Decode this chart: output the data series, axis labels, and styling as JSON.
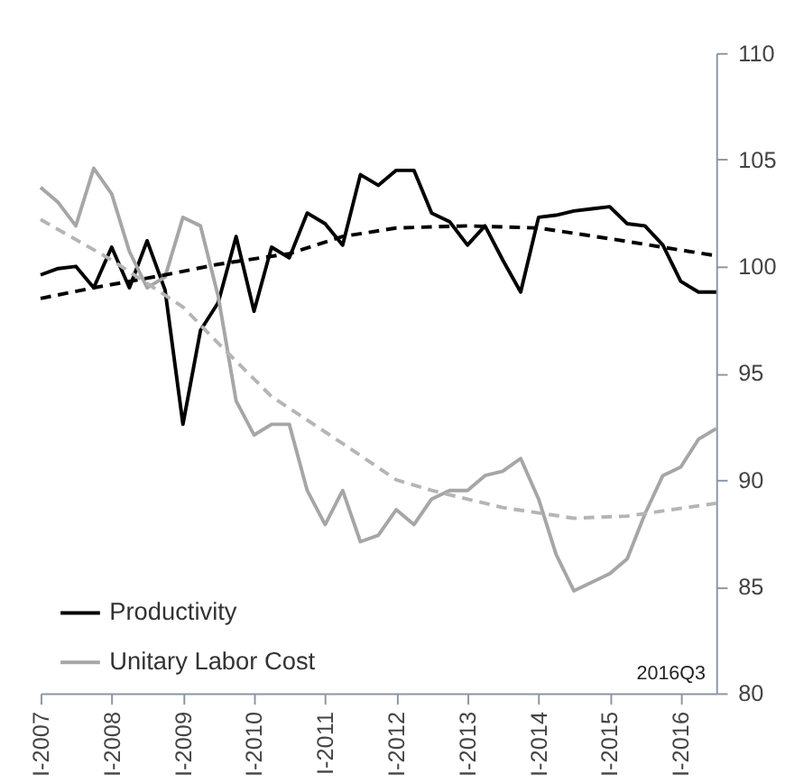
{
  "chart_data": {
    "type": "line",
    "x": [
      "2007-01",
      "2007-04",
      "2007-07",
      "2007-10",
      "2008-01",
      "2008-04",
      "2008-07",
      "2008-10",
      "2009-01",
      "2009-04",
      "2009-07",
      "2009-10",
      "2010-01",
      "2010-04",
      "2010-07",
      "2010-10",
      "2011-01",
      "2011-04",
      "2011-07",
      "2011-10",
      "2012-01",
      "2012-04",
      "2012-07",
      "2012-10",
      "2013-01",
      "2013-04",
      "2013-07",
      "2013-10",
      "2014-01",
      "2014-04",
      "2014-07",
      "2014-10",
      "2015-01",
      "2015-04",
      "2015-07",
      "2015-10",
      "2016-01",
      "2016-04",
      "2016-07"
    ],
    "series": [
      {
        "name": "Productivity",
        "color": "#000000",
        "line_style": "solid",
        "values": [
          99.6,
          99.9,
          100.0,
          99.0,
          100.9,
          99.0,
          101.2,
          98.9,
          92.6,
          97.0,
          98.3,
          101.4,
          97.9,
          100.9,
          100.4,
          102.5,
          102.0,
          101.0,
          104.3,
          103.8,
          104.5,
          104.5,
          102.5,
          102.1,
          101.0,
          101.9,
          100.3,
          98.8,
          102.3,
          102.4,
          102.6,
          102.7,
          102.8,
          102.0,
          101.9,
          101.0,
          99.3,
          98.8,
          98.8
        ]
      },
      {
        "name": "Unitary Labor Cost",
        "color": "#a6a6a6",
        "line_style": "solid",
        "values": [
          103.7,
          103.0,
          101.9,
          104.6,
          103.4,
          100.7,
          99.0,
          99.5,
          102.3,
          101.9,
          98.6,
          93.7,
          92.1,
          92.6,
          92.6,
          89.5,
          87.9,
          89.5,
          87.1,
          87.4,
          88.6,
          87.9,
          89.1,
          89.5,
          89.5,
          90.2,
          90.4,
          91.0,
          89.1,
          86.5,
          84.8,
          85.2,
          85.6,
          86.3,
          88.4,
          90.2,
          90.6,
          91.9,
          92.4
        ]
      },
      {
        "color": "#000000",
        "line_style": "dashed",
        "x": [
          "2007-01",
          "2007-10",
          "2008-10",
          "2009-07",
          "2010-07",
          "2011-04",
          "2012-01",
          "2013-01",
          "2014-01",
          "2015-01",
          "2015-10",
          "2016-07"
        ],
        "values": [
          98.5,
          99.0,
          99.6,
          100.1,
          100.6,
          101.4,
          101.8,
          101.9,
          101.8,
          101.3,
          100.9,
          100.5
        ]
      },
      {
        "color": "#b5b5b5",
        "line_style": "dashed",
        "x": [
          "2007-01",
          "2008-01",
          "2009-01",
          "2009-07",
          "2010-04",
          "2011-04",
          "2012-01",
          "2012-07",
          "2013-07",
          "2014-07",
          "2015-04",
          "2016-07"
        ],
        "values": [
          102.2,
          100.3,
          98.1,
          96.4,
          93.9,
          91.7,
          90.0,
          89.5,
          88.7,
          88.2,
          88.3,
          88.9
        ]
      }
    ],
    "xlim": [
      "2007-01",
      "2016-07"
    ],
    "xticks": [
      {
        "value": "2007-01",
        "label": "I-2007"
      },
      {
        "value": "2008-01",
        "label": "I-2008"
      },
      {
        "value": "2009-01",
        "label": "I-2009"
      },
      {
        "value": "2010-01",
        "label": "I-2010"
      },
      {
        "value": "2011-01",
        "label": "I-2011"
      },
      {
        "value": "2012-01",
        "label": "I-2012"
      },
      {
        "value": "2013-01",
        "label": "I-2013"
      },
      {
        "value": "2014-01",
        "label": "I-2014"
      },
      {
        "value": "2015-01",
        "label": "I-2015"
      },
      {
        "value": "2016-01",
        "label": "I-2016"
      }
    ],
    "ylim": [
      80,
      110
    ],
    "yticks": [
      80,
      85,
      90,
      95,
      100,
      105,
      110
    ],
    "legend": "bottom left",
    "annotations": [
      "2016Q3"
    ]
  }
}
